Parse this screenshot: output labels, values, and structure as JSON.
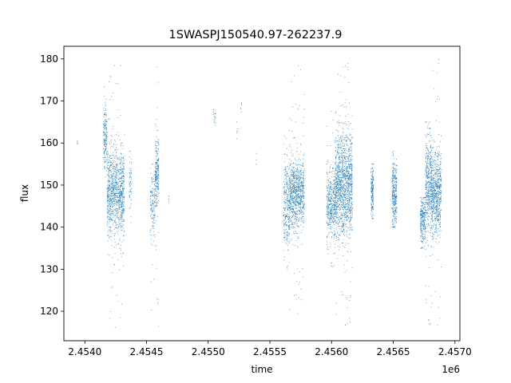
{
  "chart_data": {
    "type": "scatter",
    "title": "1SWASPJ150540.97-262237.9",
    "xlabel": "time",
    "ylabel": "flux",
    "x_offset_label": "1e6",
    "xlim": [
      2.45383,
      2.45704
    ],
    "ylim": [
      113,
      183
    ],
    "x_ticks": [
      2.454,
      2.4545,
      2.455,
      2.4555,
      2.456,
      2.4565,
      2.457
    ],
    "x_tick_labels": [
      "2.4540",
      "2.4545",
      "2.4550",
      "2.4555",
      "2.4560",
      "2.4565",
      "2.4570"
    ],
    "y_ticks": [
      120,
      130,
      140,
      150,
      160,
      170,
      180
    ],
    "y_tick_labels": [
      "120",
      "130",
      "140",
      "150",
      "160",
      "170",
      "180"
    ],
    "grid": false,
    "color": "#1f77b4",
    "series": [
      {
        "segments": [
          {
            "x": [
              2.45394,
              2.45394
            ],
            "center": 160,
            "spread": 0.5,
            "n": 6,
            "min": 159.5,
            "max": 160.5
          },
          {
            "x": [
              2.45415,
              2.45418
            ],
            "center": 161,
            "spread": 4,
            "n": 180,
            "min": 152,
            "max": 174
          },
          {
            "x": [
              2.45418,
              2.45432
            ],
            "center": 148,
            "spread": 5,
            "n": 1100,
            "min": 116,
            "max": 180
          },
          {
            "x": [
              2.45436,
              2.45438
            ],
            "center": 150,
            "spread": 4,
            "n": 60,
            "min": 140,
            "max": 158
          },
          {
            "x": [
              2.45453,
              2.45457
            ],
            "center": 145,
            "spread": 4,
            "n": 160,
            "min": 118,
            "max": 155
          },
          {
            "x": [
              2.45457,
              2.4546
            ],
            "center": 153,
            "spread": 4,
            "n": 250,
            "min": 115,
            "max": 180
          },
          {
            "x": [
              2.45468,
              2.45468
            ],
            "center": 147,
            "spread": 0.5,
            "n": 5,
            "min": 146,
            "max": 148
          },
          {
            "x": [
              2.45504,
              2.45506
            ],
            "center": 166.5,
            "spread": 1,
            "n": 20,
            "min": 164,
            "max": 168
          },
          {
            "x": [
              2.45523,
              2.45524
            ],
            "center": 163,
            "spread": 1.5,
            "n": 6,
            "min": 161,
            "max": 165
          },
          {
            "x": [
              2.45526,
              2.45527
            ],
            "center": 168,
            "spread": 1,
            "n": 6,
            "min": 166,
            "max": 170
          },
          {
            "x": [
              2.45539,
              2.45539
            ],
            "center": 156,
            "spread": 2,
            "n": 4,
            "min": 154,
            "max": 158
          },
          {
            "x": [
              2.45561,
              2.45566
            ],
            "center": 145,
            "spread": 5,
            "n": 300,
            "min": 130,
            "max": 172
          },
          {
            "x": [
              2.45566,
              2.45578
            ],
            "center": 148,
            "spread": 4,
            "n": 900,
            "min": 116,
            "max": 180
          },
          {
            "x": [
              2.45596,
              2.45603
            ],
            "center": 145,
            "spread": 4,
            "n": 450,
            "min": 130,
            "max": 168
          },
          {
            "x": [
              2.45603,
              2.45617
            ],
            "center": 150,
            "spread": 6,
            "n": 1400,
            "min": 116,
            "max": 180
          },
          {
            "x": [
              2.45632,
              2.45634
            ],
            "center": 148,
            "spread": 3,
            "n": 200,
            "min": 142,
            "max": 155
          },
          {
            "x": [
              2.45649,
              2.45653
            ],
            "center": 148,
            "spread": 4,
            "n": 350,
            "min": 140,
            "max": 158
          },
          {
            "x": [
              2.45672,
              2.45676
            ],
            "center": 142,
            "spread": 3,
            "n": 260,
            "min": 135,
            "max": 147
          },
          {
            "x": [
              2.45676,
              2.45681
            ],
            "center": 150,
            "spread": 6,
            "n": 450,
            "min": 116,
            "max": 165
          },
          {
            "x": [
              2.45681,
              2.45689
            ],
            "center": 148,
            "spread": 5,
            "n": 700,
            "min": 116,
            "max": 181
          }
        ]
      }
    ]
  }
}
